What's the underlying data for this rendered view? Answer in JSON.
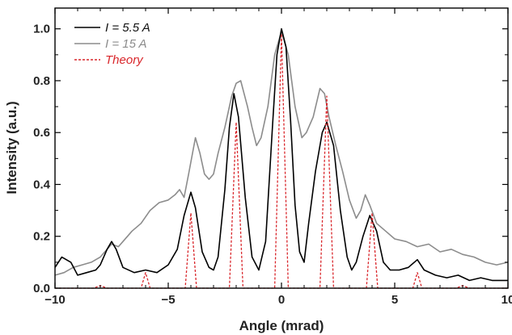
{
  "chart_data": {
    "type": "line",
    "xlabel": "Angle (mrad)",
    "ylabel": "Intensity (a.u.)",
    "xlim": [
      -10,
      10
    ],
    "ylim": [
      0,
      1.08
    ],
    "x_ticks": [
      -10,
      -5,
      0,
      5,
      10
    ],
    "x_tick_labels": [
      "−10",
      "−5",
      "0",
      "5",
      "10"
    ],
    "y_ticks": [
      0.0,
      0.2,
      0.4,
      0.6,
      0.8,
      1.0
    ],
    "y_tick_labels": [
      "0.0",
      "0.2",
      "0.4",
      "0.6",
      "0.8",
      "1.0"
    ],
    "grid": false,
    "legend_position": "top-left",
    "series": [
      {
        "name": "I = 5.5 A",
        "color": "#000000",
        "style": "solid",
        "points": [
          [
            -10,
            0.08
          ],
          [
            -9.7,
            0.12
          ],
          [
            -9.3,
            0.1
          ],
          [
            -9.0,
            0.05
          ],
          [
            -8.6,
            0.06
          ],
          [
            -8.2,
            0.07
          ],
          [
            -8.0,
            0.09
          ],
          [
            -7.7,
            0.15
          ],
          [
            -7.5,
            0.18
          ],
          [
            -7.3,
            0.15
          ],
          [
            -7.0,
            0.08
          ],
          [
            -6.5,
            0.06
          ],
          [
            -6.0,
            0.07
          ],
          [
            -5.5,
            0.06
          ],
          [
            -5.0,
            0.09
          ],
          [
            -4.6,
            0.15
          ],
          [
            -4.3,
            0.28
          ],
          [
            -4.0,
            0.37
          ],
          [
            -3.8,
            0.31
          ],
          [
            -3.5,
            0.14
          ],
          [
            -3.2,
            0.08
          ],
          [
            -3.0,
            0.07
          ],
          [
            -2.8,
            0.12
          ],
          [
            -2.5,
            0.38
          ],
          [
            -2.3,
            0.62
          ],
          [
            -2.1,
            0.75
          ],
          [
            -1.9,
            0.66
          ],
          [
            -1.6,
            0.35
          ],
          [
            -1.3,
            0.12
          ],
          [
            -1.0,
            0.07
          ],
          [
            -0.7,
            0.18
          ],
          [
            -0.4,
            0.62
          ],
          [
            -0.2,
            0.9
          ],
          [
            0.0,
            1.0
          ],
          [
            0.2,
            0.93
          ],
          [
            0.4,
            0.65
          ],
          [
            0.6,
            0.32
          ],
          [
            0.8,
            0.14
          ],
          [
            1.0,
            0.1
          ],
          [
            1.2,
            0.25
          ],
          [
            1.5,
            0.45
          ],
          [
            1.8,
            0.6
          ],
          [
            2.0,
            0.64
          ],
          [
            2.3,
            0.55
          ],
          [
            2.6,
            0.3
          ],
          [
            2.9,
            0.12
          ],
          [
            3.1,
            0.07
          ],
          [
            3.3,
            0.1
          ],
          [
            3.6,
            0.2
          ],
          [
            3.9,
            0.28
          ],
          [
            4.2,
            0.22
          ],
          [
            4.5,
            0.1
          ],
          [
            4.8,
            0.07
          ],
          [
            5.2,
            0.07
          ],
          [
            5.6,
            0.08
          ],
          [
            6.0,
            0.11
          ],
          [
            6.3,
            0.07
          ],
          [
            6.8,
            0.05
          ],
          [
            7.3,
            0.04
          ],
          [
            7.8,
            0.05
          ],
          [
            8.3,
            0.03
          ],
          [
            8.8,
            0.04
          ],
          [
            9.3,
            0.03
          ],
          [
            9.7,
            0.03
          ],
          [
            10.0,
            0.03
          ]
        ]
      },
      {
        "name": "I = 15 A",
        "color": "#8c8c8c",
        "style": "solid",
        "points": [
          [
            -10,
            0.05
          ],
          [
            -9.6,
            0.06
          ],
          [
            -9.2,
            0.08
          ],
          [
            -8.8,
            0.09
          ],
          [
            -8.4,
            0.1
          ],
          [
            -8.0,
            0.12
          ],
          [
            -7.7,
            0.15
          ],
          [
            -7.5,
            0.17
          ],
          [
            -7.2,
            0.16
          ],
          [
            -7.0,
            0.18
          ],
          [
            -6.6,
            0.22
          ],
          [
            -6.2,
            0.25
          ],
          [
            -5.8,
            0.3
          ],
          [
            -5.4,
            0.33
          ],
          [
            -5.0,
            0.34
          ],
          [
            -4.7,
            0.36
          ],
          [
            -4.5,
            0.38
          ],
          [
            -4.3,
            0.35
          ],
          [
            -4.1,
            0.44
          ],
          [
            -3.8,
            0.58
          ],
          [
            -3.6,
            0.52
          ],
          [
            -3.4,
            0.44
          ],
          [
            -3.2,
            0.42
          ],
          [
            -3.0,
            0.44
          ],
          [
            -2.8,
            0.52
          ],
          [
            -2.5,
            0.62
          ],
          [
            -2.2,
            0.74
          ],
          [
            -2.0,
            0.79
          ],
          [
            -1.8,
            0.8
          ],
          [
            -1.5,
            0.7
          ],
          [
            -1.3,
            0.62
          ],
          [
            -1.1,
            0.55
          ],
          [
            -0.9,
            0.58
          ],
          [
            -0.6,
            0.7
          ],
          [
            -0.3,
            0.9
          ],
          [
            0.0,
            0.99
          ],
          [
            0.3,
            0.9
          ],
          [
            0.6,
            0.7
          ],
          [
            0.9,
            0.58
          ],
          [
            1.1,
            0.6
          ],
          [
            1.4,
            0.66
          ],
          [
            1.7,
            0.77
          ],
          [
            1.9,
            0.75
          ],
          [
            2.1,
            0.66
          ],
          [
            2.4,
            0.55
          ],
          [
            2.7,
            0.45
          ],
          [
            3.0,
            0.34
          ],
          [
            3.3,
            0.27
          ],
          [
            3.5,
            0.3
          ],
          [
            3.7,
            0.36
          ],
          [
            3.9,
            0.32
          ],
          [
            4.2,
            0.25
          ],
          [
            4.6,
            0.22
          ],
          [
            5.0,
            0.19
          ],
          [
            5.5,
            0.18
          ],
          [
            6.0,
            0.16
          ],
          [
            6.5,
            0.17
          ],
          [
            7.0,
            0.14
          ],
          [
            7.5,
            0.15
          ],
          [
            8.0,
            0.13
          ],
          [
            8.5,
            0.12
          ],
          [
            9.0,
            0.1
          ],
          [
            9.5,
            0.09
          ],
          [
            10.0,
            0.1
          ]
        ]
      },
      {
        "name": "Theory",
        "color": "#d9262b",
        "style": "dashed",
        "points": [
          [
            -10,
            0.0
          ],
          [
            -8.3,
            0.0
          ],
          [
            -8.0,
            0.01
          ],
          [
            -7.7,
            0.0
          ],
          [
            -6.2,
            0.0
          ],
          [
            -6.0,
            0.06
          ],
          [
            -5.8,
            0.0
          ],
          [
            -4.25,
            0.0
          ],
          [
            -4.0,
            0.29
          ],
          [
            -3.75,
            0.0
          ],
          [
            -2.3,
            0.0
          ],
          [
            -2.0,
            0.64
          ],
          [
            -1.7,
            0.0
          ],
          [
            -0.3,
            0.0
          ],
          [
            0.0,
            0.98
          ],
          [
            0.3,
            0.0
          ],
          [
            1.7,
            0.0
          ],
          [
            2.0,
            0.74
          ],
          [
            2.3,
            0.0
          ],
          [
            3.75,
            0.0
          ],
          [
            4.0,
            0.29
          ],
          [
            4.25,
            0.0
          ],
          [
            5.8,
            0.0
          ],
          [
            6.0,
            0.06
          ],
          [
            6.2,
            0.0
          ],
          [
            7.7,
            0.0
          ],
          [
            8.0,
            0.01
          ],
          [
            8.3,
            0.0
          ],
          [
            10,
            0.0
          ]
        ]
      }
    ]
  }
}
